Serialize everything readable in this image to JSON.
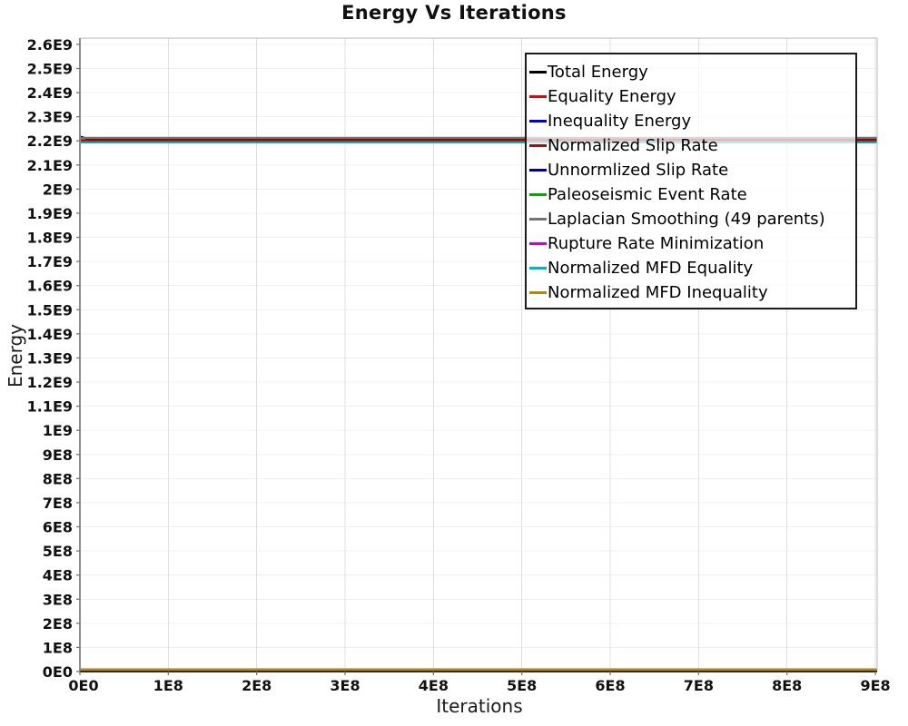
{
  "title": "Energy Vs Iterations",
  "chart_data": {
    "type": "line",
    "title": "Energy Vs Iterations",
    "xlabel": "Iterations",
    "ylabel": "Energy",
    "xlim": [
      0,
      902000000
    ],
    "ylim": [
      0,
      2626000000
    ],
    "grid": true,
    "legend_position": "top-right-inside",
    "x_tick_values": [
      0,
      100000000,
      200000000,
      300000000,
      400000000,
      500000000,
      600000000,
      700000000,
      800000000,
      900000000
    ],
    "x_tick_labels": [
      "0E0",
      "1E8",
      "2E8",
      "3E8",
      "4E8",
      "5E8",
      "6E8",
      "7E8",
      "8E8",
      "9E8"
    ],
    "y_tick_values": [
      0,
      100000000,
      200000000,
      300000000,
      400000000,
      500000000,
      600000000,
      700000000,
      800000000,
      900000000,
      1000000000,
      1100000000,
      1200000000,
      1300000000,
      1400000000,
      1500000000,
      1600000000,
      1700000000,
      1800000000,
      1900000000,
      2000000000,
      2100000000,
      2200000000,
      2300000000,
      2400000000,
      2500000000,
      2600000000
    ],
    "y_tick_labels": [
      "0E0",
      "1E8",
      "2E8",
      "3E8",
      "4E8",
      "5E8",
      "6E8",
      "7E8",
      "8E8",
      "9E8",
      "1E9",
      "1.1E9",
      "1.2E9",
      "1.3E9",
      "1.4E9",
      "1.5E9",
      "1.6E9",
      "1.7E9",
      "1.8E9",
      "1.9E9",
      "2E9",
      "2.1E9",
      "2.2E9",
      "2.3E9",
      "2.4E9",
      "2.5E9",
      "2.6E9"
    ],
    "series": [
      {
        "name": "Total Energy",
        "color": "#000000",
        "x": [
          0,
          10000000,
          902000000
        ],
        "y": [
          2218000000,
          2208000000,
          2208000000
        ]
      },
      {
        "name": "Equality Energy",
        "color": "#ee0000",
        "x": [
          0,
          902000000
        ],
        "y": [
          2200000000,
          2200000000
        ]
      },
      {
        "name": "Inequality Energy",
        "color": "#0000dd",
        "x": [
          0,
          902000000
        ],
        "y": [
          8000000,
          8000000
        ]
      },
      {
        "name": "Normalized Slip Rate",
        "color": "#991111",
        "x": [
          0,
          902000000
        ],
        "y": [
          2203500000,
          2203500000
        ]
      },
      {
        "name": "Unnormlized Slip Rate",
        "color": "#000099",
        "x": [
          0,
          902000000
        ],
        "y": [
          8000000,
          8000000
        ]
      },
      {
        "name": "Paleoseismic Event Rate",
        "color": "#00aa00",
        "x": [
          0,
          902000000
        ],
        "y": [
          8000000,
          8000000
        ]
      },
      {
        "name": "Laplacian Smoothing (49 parents)",
        "color": "#737373",
        "x": [
          0,
          902000000
        ],
        "y": [
          2212500000,
          2212500000
        ]
      },
      {
        "name": "Rupture Rate Minimization",
        "color": "#cc00cc",
        "x": [
          0,
          902000000
        ],
        "y": [
          8000000,
          8000000
        ]
      },
      {
        "name": "Normalized MFD Equality",
        "color": "#00b8b8",
        "x": [
          0,
          902000000
        ],
        "y": [
          2193500000,
          2193500000
        ]
      },
      {
        "name": "Normalized MFD Inequality",
        "color": "#b8860b",
        "x": [
          0,
          902000000
        ],
        "y": [
          8000000,
          8000000
        ]
      }
    ]
  }
}
